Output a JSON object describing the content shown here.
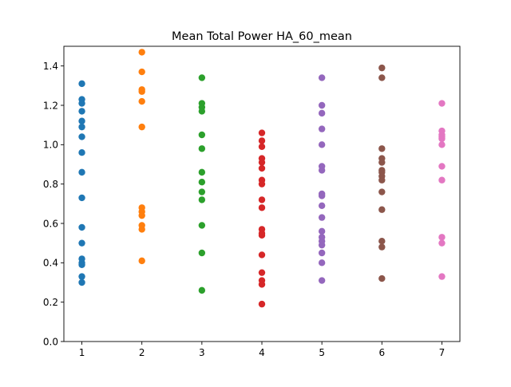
{
  "chart_data": {
    "type": "scatter",
    "title": "Mean Total Power HA_60_mean",
    "xlabel": "",
    "ylabel": "",
    "xlim": [
      0.7,
      7.3
    ],
    "ylim": [
      0.0,
      1.5
    ],
    "x_ticks": [
      "1",
      "2",
      "3",
      "4",
      "5",
      "6",
      "7"
    ],
    "y_ticks": [
      "0.0",
      "0.2",
      "0.4",
      "0.6",
      "0.8",
      "1.0",
      "1.2",
      "1.4"
    ],
    "grid": false,
    "legend": "none",
    "series": [
      {
        "color": "#1f77b4",
        "x": 1,
        "values": [
          1.31,
          1.23,
          1.21,
          1.17,
          1.12,
          1.09,
          1.04,
          0.96,
          0.86,
          0.73,
          0.58,
          0.5,
          0.42,
          0.4,
          0.39,
          0.33,
          0.3
        ]
      },
      {
        "color": "#ff7f0e",
        "x": 2,
        "values": [
          1.47,
          1.37,
          1.28,
          1.27,
          1.22,
          1.09,
          0.68,
          0.66,
          0.64,
          0.59,
          0.57,
          0.41
        ]
      },
      {
        "color": "#2ca02c",
        "x": 3,
        "values": [
          1.34,
          1.21,
          1.19,
          1.17,
          1.05,
          0.98,
          0.86,
          0.81,
          0.76,
          0.72,
          0.59,
          0.45,
          0.26
        ]
      },
      {
        "color": "#d62728",
        "x": 4,
        "values": [
          1.06,
          1.02,
          0.99,
          0.93,
          0.91,
          0.88,
          0.82,
          0.8,
          0.72,
          0.68,
          0.57,
          0.55,
          0.54,
          0.44,
          0.35,
          0.31,
          0.29,
          0.19
        ]
      },
      {
        "color": "#9467bd",
        "x": 5,
        "values": [
          1.34,
          1.2,
          1.16,
          1.08,
          1.0,
          0.89,
          0.87,
          0.75,
          0.74,
          0.69,
          0.63,
          0.56,
          0.53,
          0.51,
          0.49,
          0.45,
          0.4,
          0.31
        ]
      },
      {
        "color": "#8c564b",
        "x": 6,
        "values": [
          1.39,
          1.34,
          0.98,
          0.93,
          0.91,
          0.87,
          0.86,
          0.84,
          0.82,
          0.76,
          0.67,
          0.51,
          0.48,
          0.32
        ]
      },
      {
        "color": "#e377c2",
        "x": 7,
        "values": [
          1.21,
          1.07,
          1.05,
          1.04,
          1.03,
          1.0,
          0.89,
          0.82,
          0.53,
          0.5,
          0.33
        ]
      }
    ]
  }
}
